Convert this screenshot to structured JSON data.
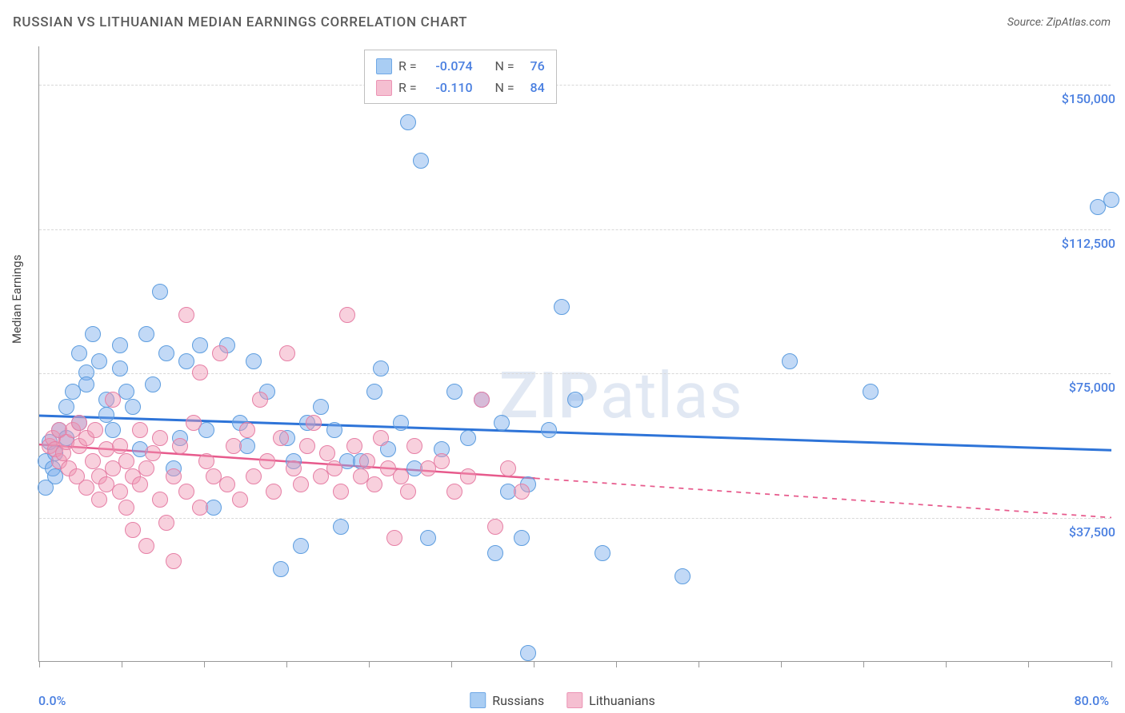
{
  "title": "RUSSIAN VS LITHUANIAN MEDIAN EARNINGS CORRELATION CHART",
  "source_prefix": "Source: ",
  "source_name": "ZipAtlas.com",
  "y_axis_label": "Median Earnings",
  "watermark_bold": "ZIP",
  "watermark_rest": "atlas",
  "chart": {
    "type": "scatter",
    "background_color": "#ffffff",
    "grid_color": "#d8d8d8",
    "axis_color": "#999999",
    "accent_color": "#4a7fe0",
    "title_fontsize": 17,
    "label_fontsize": 15,
    "tick_fontsize": 16,
    "xlim": [
      0,
      80
    ],
    "ylim": [
      0,
      160000
    ],
    "x_min_label": "0.0%",
    "x_max_label": "80.0%",
    "y_ticks": [
      37500,
      75000,
      112500,
      150000
    ],
    "y_tick_labels": [
      "$37,500",
      "$75,000",
      "$112,500",
      "$150,000"
    ],
    "x_tick_positions": [
      0,
      6.15,
      12.3,
      18.45,
      24.6,
      30.75,
      36.9,
      43.05,
      49.2,
      55.35,
      61.5,
      67.65,
      73.8,
      80
    ],
    "series": [
      {
        "name": "Russians",
        "fill_color": "rgba(120,170,235,0.45)",
        "stroke_color": "#5d9ddf",
        "swatch_fill": "#a9cdf3",
        "swatch_border": "#6fa8e6",
        "marker_radius": 10,
        "marker_stroke_width": 1.2,
        "R_label": "R =",
        "R": "-0.074",
        "N_label": "N =",
        "N": "76",
        "trend": {
          "x1": 0,
          "y1": 64000,
          "x2": 80,
          "y2": 55000,
          "color": "#2e74d8",
          "width": 3,
          "dash_solid_until_x": 80
        },
        "points": [
          [
            0.5,
            45000
          ],
          [
            0.5,
            52000
          ],
          [
            0.8,
            57000
          ],
          [
            1.0,
            50000
          ],
          [
            1.2,
            54000
          ],
          [
            1.2,
            48000
          ],
          [
            1.5,
            60000
          ],
          [
            2,
            66000
          ],
          [
            2,
            58000
          ],
          [
            2.5,
            70000
          ],
          [
            3,
            62000
          ],
          [
            3,
            80000
          ],
          [
            3.5,
            75000
          ],
          [
            3.5,
            72000
          ],
          [
            4,
            85000
          ],
          [
            4.5,
            78000
          ],
          [
            5,
            68000
          ],
          [
            5,
            64000
          ],
          [
            5.5,
            60000
          ],
          [
            6,
            82000
          ],
          [
            6,
            76000
          ],
          [
            6.5,
            70000
          ],
          [
            7,
            66000
          ],
          [
            7.5,
            55000
          ],
          [
            8,
            85000
          ],
          [
            8.5,
            72000
          ],
          [
            9,
            96000
          ],
          [
            9.5,
            80000
          ],
          [
            10,
            50000
          ],
          [
            10.5,
            58000
          ],
          [
            11,
            78000
          ],
          [
            12,
            82000
          ],
          [
            12.5,
            60000
          ],
          [
            13,
            40000
          ],
          [
            14,
            82000
          ],
          [
            15,
            62000
          ],
          [
            15.5,
            56000
          ],
          [
            16,
            78000
          ],
          [
            17,
            70000
          ],
          [
            18,
            24000
          ],
          [
            18.5,
            58000
          ],
          [
            19,
            52000
          ],
          [
            19.5,
            30000
          ],
          [
            20,
            62000
          ],
          [
            21,
            66000
          ],
          [
            22,
            60000
          ],
          [
            22.5,
            35000
          ],
          [
            23,
            52000
          ],
          [
            24,
            52000
          ],
          [
            25,
            70000
          ],
          [
            25.5,
            76000
          ],
          [
            26,
            55000
          ],
          [
            27,
            62000
          ],
          [
            27.5,
            140000
          ],
          [
            28,
            50000
          ],
          [
            28.5,
            130000
          ],
          [
            29,
            32000
          ],
          [
            30,
            55000
          ],
          [
            31,
            70000
          ],
          [
            32,
            58000
          ],
          [
            33,
            68000
          ],
          [
            34,
            28000
          ],
          [
            34.5,
            62000
          ],
          [
            35,
            44000
          ],
          [
            36,
            32000
          ],
          [
            36.5,
            2000
          ],
          [
            36.5,
            46000
          ],
          [
            38,
            60000
          ],
          [
            39,
            92000
          ],
          [
            40,
            68000
          ],
          [
            42,
            28000
          ],
          [
            48,
            22000
          ],
          [
            56,
            78000
          ],
          [
            62,
            70000
          ],
          [
            79,
            118000
          ],
          [
            80,
            120000
          ]
        ]
      },
      {
        "name": "Lithuanians",
        "fill_color": "rgba(240,150,180,0.45)",
        "stroke_color": "#e67fa5",
        "swatch_fill": "#f5bfd1",
        "swatch_border": "#ec94b5",
        "marker_radius": 10,
        "marker_stroke_width": 1.2,
        "R_label": "R =",
        "R": "-0.110",
        "N_label": "N =",
        "N": "84",
        "trend": {
          "x1": 0,
          "y1": 56500,
          "x2": 80,
          "y2": 37500,
          "color": "#e75a8c",
          "width": 2.5,
          "dash_solid_until_x": 37
        },
        "points": [
          [
            0.8,
            56000
          ],
          [
            1,
            58000
          ],
          [
            1.2,
            55000
          ],
          [
            1.5,
            60000
          ],
          [
            1.5,
            52000
          ],
          [
            1.8,
            54000
          ],
          [
            2,
            57000
          ],
          [
            2.2,
            50000
          ],
          [
            2.5,
            60000
          ],
          [
            2.8,
            48000
          ],
          [
            3,
            56000
          ],
          [
            3,
            62000
          ],
          [
            3.5,
            45000
          ],
          [
            3.5,
            58000
          ],
          [
            4,
            52000
          ],
          [
            4.2,
            60000
          ],
          [
            4.5,
            48000
          ],
          [
            4.5,
            42000
          ],
          [
            5,
            55000
          ],
          [
            5,
            46000
          ],
          [
            5.5,
            50000
          ],
          [
            5.5,
            68000
          ],
          [
            6,
            44000
          ],
          [
            6,
            56000
          ],
          [
            6.5,
            40000
          ],
          [
            6.5,
            52000
          ],
          [
            7,
            48000
          ],
          [
            7,
            34000
          ],
          [
            7.5,
            46000
          ],
          [
            7.5,
            60000
          ],
          [
            8,
            50000
          ],
          [
            8,
            30000
          ],
          [
            8.5,
            54000
          ],
          [
            9,
            42000
          ],
          [
            9,
            58000
          ],
          [
            9.5,
            36000
          ],
          [
            10,
            48000
          ],
          [
            10,
            26000
          ],
          [
            10.5,
            56000
          ],
          [
            11,
            44000
          ],
          [
            11,
            90000
          ],
          [
            11.5,
            62000
          ],
          [
            12,
            40000
          ],
          [
            12,
            75000
          ],
          [
            12.5,
            52000
          ],
          [
            13,
            48000
          ],
          [
            13.5,
            80000
          ],
          [
            14,
            46000
          ],
          [
            14.5,
            56000
          ],
          [
            15,
            42000
          ],
          [
            15.5,
            60000
          ],
          [
            16,
            48000
          ],
          [
            16.5,
            68000
          ],
          [
            17,
            52000
          ],
          [
            17.5,
            44000
          ],
          [
            18,
            58000
          ],
          [
            18.5,
            80000
          ],
          [
            19,
            50000
          ],
          [
            19.5,
            46000
          ],
          [
            20,
            56000
          ],
          [
            20.5,
            62000
          ],
          [
            21,
            48000
          ],
          [
            21.5,
            54000
          ],
          [
            22,
            50000
          ],
          [
            22.5,
            44000
          ],
          [
            23,
            90000
          ],
          [
            23.5,
            56000
          ],
          [
            24,
            48000
          ],
          [
            24.5,
            52000
          ],
          [
            25,
            46000
          ],
          [
            25.5,
            58000
          ],
          [
            26,
            50000
          ],
          [
            26.5,
            32000
          ],
          [
            27,
            48000
          ],
          [
            27.5,
            44000
          ],
          [
            28,
            56000
          ],
          [
            29,
            50000
          ],
          [
            30,
            52000
          ],
          [
            31,
            44000
          ],
          [
            32,
            48000
          ],
          [
            33,
            68000
          ],
          [
            34,
            35000
          ],
          [
            35,
            50000
          ],
          [
            36,
            44000
          ]
        ]
      }
    ]
  }
}
